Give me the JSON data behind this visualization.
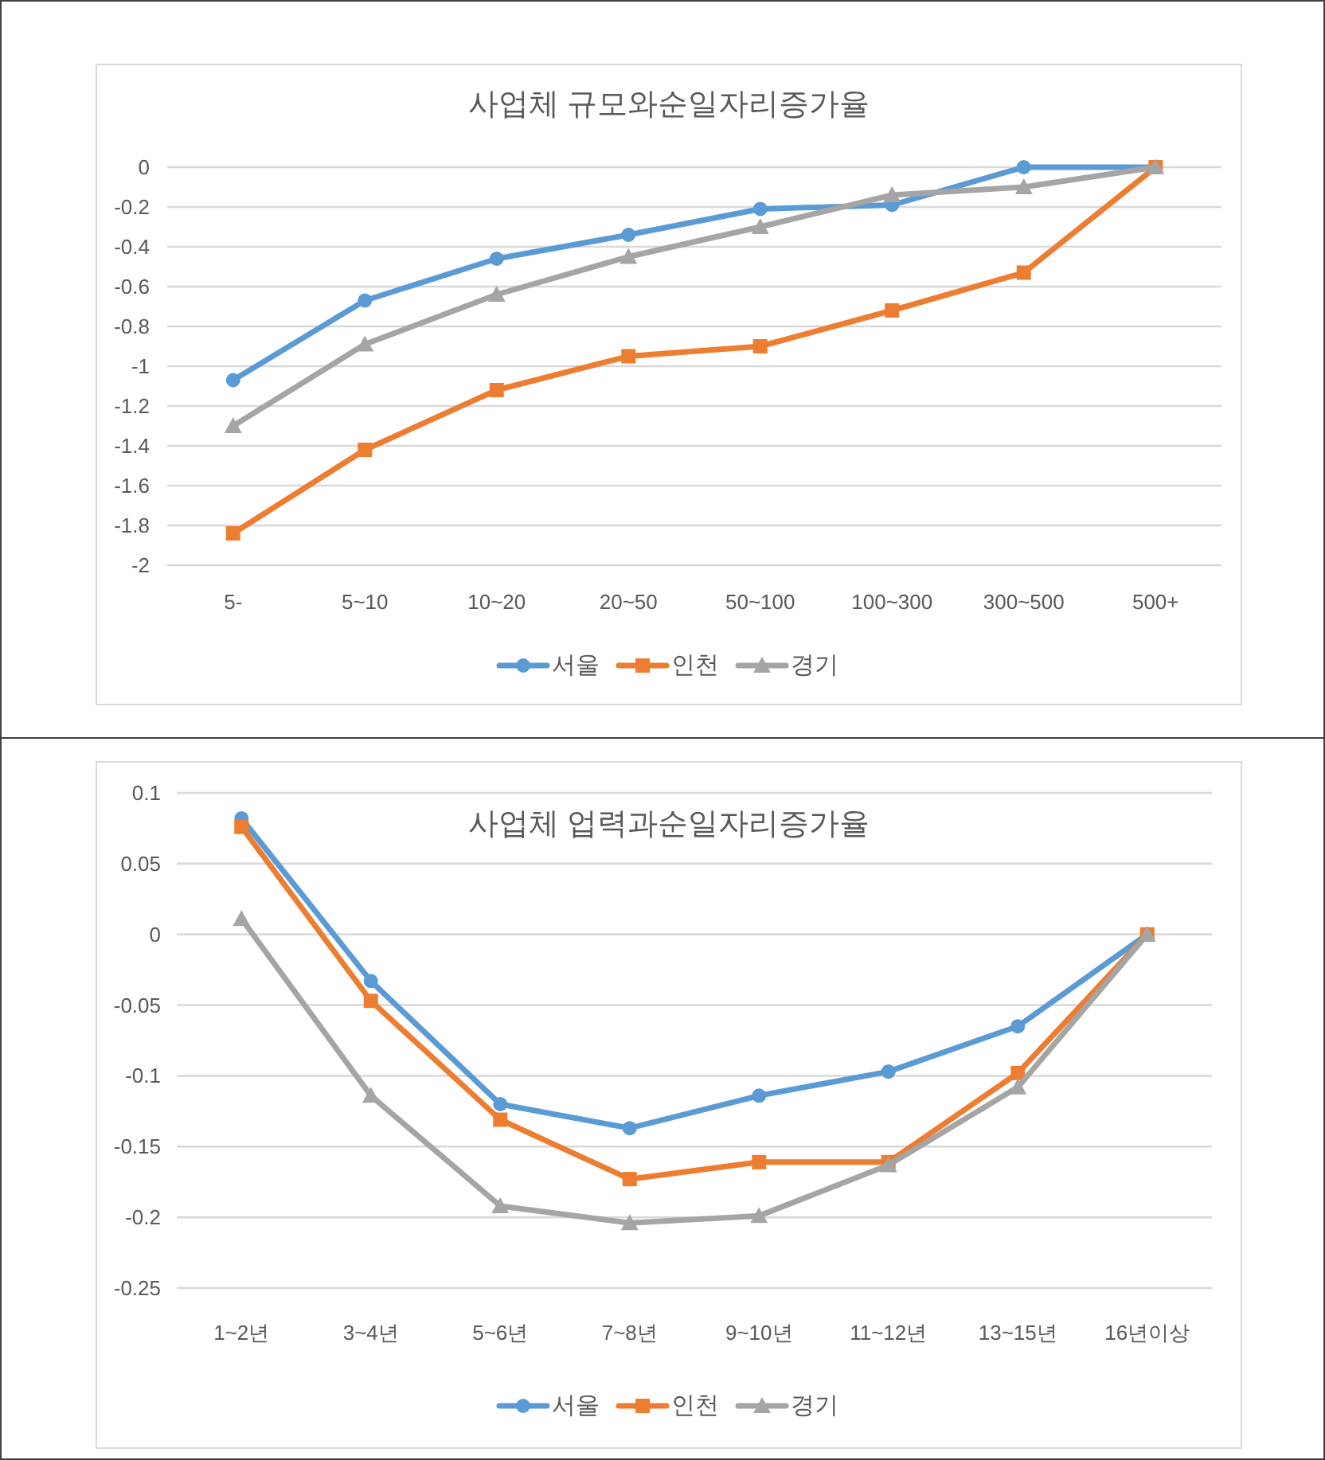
{
  "chart_data": [
    {
      "type": "line",
      "title": "사업체 규모와순일자리증가율",
      "categories": [
        "5-",
        "5~10",
        "10~20",
        "20~50",
        "50~100",
        "100~300",
        "300~500",
        "500+"
      ],
      "series": [
        {
          "name": "서울",
          "color": "#5b9bd5",
          "marker": "circle",
          "values": [
            -1.07,
            -0.67,
            -0.46,
            -0.34,
            -0.21,
            -0.19,
            0,
            0
          ]
        },
        {
          "name": "인천",
          "color": "#ed7d31",
          "marker": "square",
          "values": [
            -1.84,
            -1.42,
            -1.12,
            -0.95,
            -0.9,
            -0.72,
            -0.53,
            0
          ]
        },
        {
          "name": "경기",
          "color": "#a5a5a5",
          "marker": "triangle",
          "values": [
            -1.3,
            -0.89,
            -0.64,
            -0.45,
            -0.3,
            -0.14,
            -0.1,
            0
          ]
        }
      ],
      "ylim": [
        -2,
        0
      ],
      "yticks": [
        0,
        -0.2,
        -0.4,
        -0.6,
        -0.8,
        -1,
        -1.2,
        -1.4,
        -1.6,
        -1.8,
        -2
      ],
      "grid": "y",
      "legend": "bottom",
      "line_style": "solid"
    },
    {
      "type": "line",
      "title": "사업체 업력과순일자리증가율",
      "categories": [
        "1~2년",
        "3~4년",
        "5~6년",
        "7~8년",
        "9~10년",
        "11~12년",
        "13~15년",
        "16년이상"
      ],
      "series": [
        {
          "name": "서울",
          "color": "#5b9bd5",
          "marker": "circle",
          "values": [
            0.082,
            -0.033,
            -0.12,
            -0.137,
            -0.114,
            -0.097,
            -0.065,
            0
          ]
        },
        {
          "name": "인천",
          "color": "#ed7d31",
          "marker": "square",
          "values": [
            0.076,
            -0.047,
            -0.131,
            -0.173,
            -0.161,
            -0.161,
            -0.098,
            0
          ]
        },
        {
          "name": "경기",
          "color": "#a5a5a5",
          "marker": "triangle",
          "values": [
            0.011,
            -0.114,
            -0.192,
            -0.204,
            -0.199,
            -0.163,
            -0.108,
            0
          ]
        }
      ],
      "ylim": [
        -0.25,
        0.1
      ],
      "yticks": [
        0.1,
        0.05,
        0,
        -0.05,
        -0.1,
        -0.15,
        -0.2,
        -0.25
      ],
      "grid": "y",
      "legend": "bottom",
      "line_style": "solid"
    }
  ]
}
